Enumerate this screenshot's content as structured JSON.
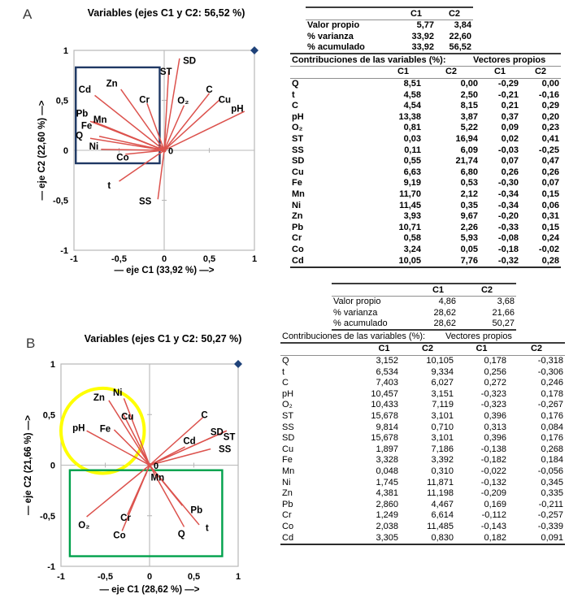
{
  "colors": {
    "vector": "#dc524d",
    "navy_rect": "#1f3864",
    "yellow_ellipse": "#ffff00",
    "green_rect": "#00a14b",
    "corner_marker": "#1f4279",
    "axis_gray": "#b8b8b8",
    "text": "#000000"
  },
  "chart_data": [
    {
      "type": "scatter",
      "subtype": "pca-variable-biplot",
      "panel_letter": "A",
      "title": "Variables (ejes C1 y C2: 56,52 %)",
      "xlabel": "— eje C1 (33,92 %) —>",
      "ylabel": "— eje C2 (22,60 %) —>",
      "xlim": [
        -1,
        1
      ],
      "ylim": [
        -1,
        1
      ],
      "xticks": [
        {
          "v": -1,
          "label": "-1"
        },
        {
          "v": -0.5,
          "label": "-0,5"
        },
        {
          "v": 0,
          "label": "0"
        },
        {
          "v": 0.5,
          "label": "0,5"
        },
        {
          "v": 1,
          "label": "1"
        }
      ],
      "yticks": [
        {
          "v": 1,
          "label": "1"
        },
        {
          "v": 0.5,
          "label": "0,5"
        },
        {
          "v": 0,
          "label": "0"
        },
        {
          "v": -0.5,
          "label": "-0,5"
        },
        {
          "v": -1,
          "label": "-1"
        }
      ],
      "origin_label": "0",
      "grid": false,
      "corner_marker": {
        "x": 1,
        "y": 1
      },
      "vectors": [
        {
          "name": "Q",
          "x": -0.7,
          "y": 0.01,
          "lx": -0.94,
          "ly": 0.15
        },
        {
          "name": "t",
          "x": -0.5,
          "y": -0.31,
          "lx": -0.61,
          "ly": -0.35
        },
        {
          "name": "C",
          "x": 0.5,
          "y": 0.57,
          "lx": 0.5,
          "ly": 0.61
        },
        {
          "name": "pH",
          "x": 0.89,
          "y": 0.39,
          "lx": 0.81,
          "ly": 0.42
        },
        {
          "name": "O₂",
          "x": 0.22,
          "y": 0.45,
          "lx": 0.21,
          "ly": 0.5
        },
        {
          "name": "ST",
          "x": 0.05,
          "y": 0.8,
          "lx": 0.02,
          "ly": 0.79
        },
        {
          "name": "SS",
          "x": -0.07,
          "y": -0.49,
          "lx": -0.21,
          "ly": -0.51
        },
        {
          "name": "SD",
          "x": 0.17,
          "y": 0.92,
          "lx": 0.28,
          "ly": 0.9
        },
        {
          "name": "Cu",
          "x": 0.62,
          "y": 0.51,
          "lx": 0.67,
          "ly": 0.51
        },
        {
          "name": "Fe",
          "x": -0.72,
          "y": 0.14,
          "lx": -0.86,
          "ly": 0.25
        },
        {
          "name": "Mn",
          "x": -0.82,
          "y": 0.29,
          "lx": -0.71,
          "ly": 0.31
        },
        {
          "name": "Ni",
          "x": -0.82,
          "y": 0.12,
          "lx": -0.78,
          "ly": 0.04
        },
        {
          "name": "Zn",
          "x": -0.48,
          "y": 0.61,
          "lx": -0.58,
          "ly": 0.67
        },
        {
          "name": "Pb",
          "x": -0.79,
          "y": 0.29,
          "lx": -0.91,
          "ly": 0.37
        },
        {
          "name": "Cr",
          "x": -0.19,
          "y": 0.47,
          "lx": -0.22,
          "ly": 0.51
        },
        {
          "name": "Co",
          "x": -0.43,
          "y": -0.04,
          "lx": -0.46,
          "ly": -0.07
        },
        {
          "name": "Cd",
          "x": -0.77,
          "y": 0.55,
          "lx": -0.88,
          "ly": 0.61
        }
      ],
      "annotations": [
        {
          "shape": "rect",
          "x1": -0.98,
          "y1": -0.13,
          "x2": -0.05,
          "y2": 0.83,
          "color": "#1f3864",
          "width": 2.4
        }
      ]
    },
    {
      "type": "scatter",
      "subtype": "pca-variable-biplot",
      "panel_letter": "B",
      "title": "Variables (ejes C1 y C2: 50,27 %)",
      "xlabel": "— eje C1 (28,62 %) —>",
      "ylabel": "— eje C2 (21,66 %) —>",
      "xlim": [
        -1,
        1
      ],
      "ylim": [
        -1,
        1
      ],
      "xticks": [
        {
          "v": -1,
          "label": "-1"
        },
        {
          "v": -0.5,
          "label": "-0,5"
        },
        {
          "v": 0,
          "label": "0"
        },
        {
          "v": 0.5,
          "label": "0,5"
        },
        {
          "v": 1,
          "label": "1"
        }
      ],
      "yticks": [
        {
          "v": 1,
          "label": "1"
        },
        {
          "v": 0.5,
          "label": "0,5"
        },
        {
          "v": 0,
          "label": "0"
        },
        {
          "v": -0.5,
          "label": "-0,5"
        },
        {
          "v": -1,
          "label": "-1"
        }
      ],
      "origin_label": "0",
      "grid": false,
      "corner_marker": {
        "x": 1,
        "y": 1
      },
      "vectors": [
        {
          "name": "Q",
          "x": 0.39,
          "y": -0.61,
          "lx": 0.36,
          "ly": -0.68
        },
        {
          "name": "t",
          "x": 0.56,
          "y": -0.59,
          "lx": 0.65,
          "ly": -0.62
        },
        {
          "name": "C",
          "x": 0.6,
          "y": 0.47,
          "lx": 0.62,
          "ly": 0.5
        },
        {
          "name": "pH",
          "x": -0.71,
          "y": 0.34,
          "lx": -0.8,
          "ly": 0.37
        },
        {
          "name": "O₂",
          "x": -0.71,
          "y": -0.51,
          "lx": -0.74,
          "ly": -0.59
        },
        {
          "name": "ST",
          "x": 0.87,
          "y": 0.34,
          "lx": 0.9,
          "ly": 0.28
        },
        {
          "name": "SS",
          "x": 0.69,
          "y": 0.16,
          "lx": 0.85,
          "ly": 0.16
        },
        {
          "name": "SD",
          "x": 0.87,
          "y": 0.34,
          "lx": 0.76,
          "ly": 0.33
        },
        {
          "name": "Cu",
          "x": -0.3,
          "y": 0.51,
          "lx": -0.25,
          "ly": 0.48
        },
        {
          "name": "Fe",
          "x": -0.4,
          "y": 0.35,
          "lx": -0.5,
          "ly": 0.36
        },
        {
          "name": "Mn",
          "x": -0.05,
          "y": -0.11,
          "lx": 0.09,
          "ly": -0.12
        },
        {
          "name": "Ni",
          "x": -0.29,
          "y": 0.66,
          "lx": -0.36,
          "ly": 0.72
        },
        {
          "name": "Zn",
          "x": -0.46,
          "y": 0.64,
          "lx": -0.57,
          "ly": 0.67
        },
        {
          "name": "Pb",
          "x": 0.37,
          "y": -0.4,
          "lx": 0.53,
          "ly": -0.44
        },
        {
          "name": "Cr",
          "x": -0.25,
          "y": -0.49,
          "lx": -0.27,
          "ly": -0.52
        },
        {
          "name": "Co",
          "x": -0.31,
          "y": -0.65,
          "lx": -0.34,
          "ly": -0.69
        },
        {
          "name": "Cd",
          "x": 0.4,
          "y": 0.18,
          "lx": 0.45,
          "ly": 0.24
        }
      ],
      "annotations": [
        {
          "shape": "ellipse",
          "cx": -0.53,
          "cy": 0.34,
          "rx": 0.47,
          "ry": 0.42,
          "color": "#ffff00",
          "width": 4
        },
        {
          "shape": "rect",
          "x1": -0.9,
          "y1": -0.9,
          "x2": 0.82,
          "y2": -0.05,
          "color": "#00a14b",
          "width": 2.4
        }
      ]
    }
  ],
  "tables": {
    "A": {
      "summary": {
        "headers": [
          "",
          "C1",
          "C2"
        ],
        "rows": [
          [
            "Valor propio",
            "5,77",
            "3,84"
          ],
          [
            "% varianza",
            "33,92",
            "22,60"
          ],
          [
            "% acumulado",
            "33,92",
            "56,52"
          ]
        ]
      },
      "contrib_title": "Contribuciones de las variables (%):",
      "vectors_title": "Vectores propios",
      "headers": [
        "",
        "C1",
        "C2",
        "C1",
        "C2"
      ],
      "rows": [
        [
          "Q",
          "8,51",
          "0,00",
          "-0,29",
          "0,00"
        ],
        [
          "t",
          "4,58",
          "2,50",
          "-0,21",
          "-0,16"
        ],
        [
          "C",
          "4,54",
          "8,15",
          "0,21",
          "0,29"
        ],
        [
          "pH",
          "13,38",
          "3,87",
          "0,37",
          "0,20"
        ],
        [
          "O₂",
          "0,81",
          "5,22",
          "0,09",
          "0,23"
        ],
        [
          "ST",
          "0,03",
          "16,94",
          "0,02",
          "0,41"
        ],
        [
          "SS",
          "0,11",
          "6,09",
          "-0,03",
          "-0,25"
        ],
        [
          "SD",
          "0,55",
          "21,74",
          "0,07",
          "0,47"
        ],
        [
          "Cu",
          "6,63",
          "6,80",
          "0,26",
          "0,26"
        ],
        [
          "Fe",
          "9,19",
          "0,53",
          "-0,30",
          "0,07"
        ],
        [
          "Mn",
          "11,70",
          "2,12",
          "-0,34",
          "0,15"
        ],
        [
          "Ni",
          "11,45",
          "0,35",
          "-0,34",
          "0,06"
        ],
        [
          "Zn",
          "3,93",
          "9,67",
          "-0,20",
          "0,31"
        ],
        [
          "Pb",
          "10,71",
          "2,26",
          "-0,33",
          "0,15"
        ],
        [
          "Cr",
          "0,58",
          "5,93",
          "-0,08",
          "0,24"
        ],
        [
          "Co",
          "3,24",
          "0,05",
          "-0,18",
          "-0,02"
        ],
        [
          "Cd",
          "10,05",
          "7,76",
          "-0,32",
          "0,28"
        ]
      ]
    },
    "B": {
      "summary": {
        "headers": [
          "",
          "C1",
          "C2"
        ],
        "rows": [
          [
            "Valor propio",
            "4,86",
            "3,68"
          ],
          [
            "% varianza",
            "28,62",
            "21,66"
          ],
          [
            "% acumulado",
            "28,62",
            "50,27"
          ]
        ]
      },
      "contrib_title": "Contribuciones de las variables (%):",
      "vectors_title": "Vectores propios",
      "headers": [
        "",
        "C1",
        "C2",
        "C1",
        "C2"
      ],
      "rows": [
        [
          "Q",
          "3,152",
          "10,105",
          "0,178",
          "-0,318"
        ],
        [
          "t",
          "6,534",
          "9,334",
          "0,256",
          "-0,306"
        ],
        [
          "C",
          "7,403",
          "6,027",
          "0,272",
          "0,246"
        ],
        [
          "pH",
          "10,457",
          "3,151",
          "-0,323",
          "0,178"
        ],
        [
          "O₂",
          "10,433",
          "7,119",
          "-0,323",
          "-0,267"
        ],
        [
          "ST",
          "15,678",
          "3,101",
          "0,396",
          "0,176"
        ],
        [
          "SS",
          "9,814",
          "0,710",
          "0,313",
          "0,084"
        ],
        [
          "SD",
          "15,678",
          "3,101",
          "0,396",
          "0,176"
        ],
        [
          "Cu",
          "1,897",
          "7,186",
          "-0,138",
          "0,268"
        ],
        [
          "Fe",
          "3,328",
          "3,392",
          "-0,182",
          "0,184"
        ],
        [
          "Mn",
          "0,048",
          "0,310",
          "-0,022",
          "-0,056"
        ],
        [
          "Ni",
          "1,745",
          "11,871",
          "-0,132",
          "0,345"
        ],
        [
          "Zn",
          "4,381",
          "11,198",
          "-0,209",
          "0,335"
        ],
        [
          "Pb",
          "2,860",
          "4,467",
          "0,169",
          "-0,211"
        ],
        [
          "Cr",
          "1,249",
          "6,614",
          "-0,112",
          "-0,257"
        ],
        [
          "Co",
          "2,038",
          "11,485",
          "-0,143",
          "-0,339"
        ],
        [
          "Cd",
          "3,305",
          "0,830",
          "0,182",
          "0,091"
        ]
      ]
    }
  }
}
